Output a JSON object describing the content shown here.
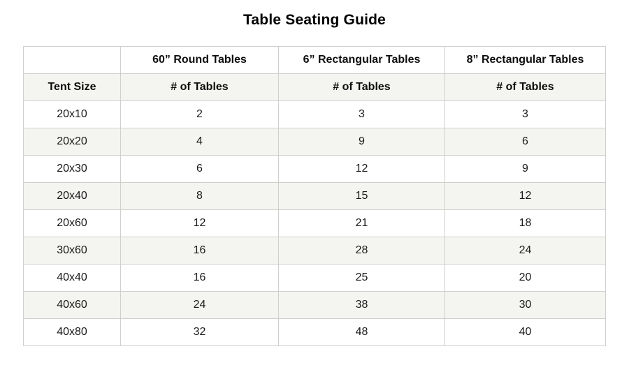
{
  "title": "Table Seating Guide",
  "table": {
    "header_row": [
      "",
      "60” Round Tables",
      "6” Rectangular Tables",
      "8” Rectangular Tables"
    ],
    "subheader_row": [
      "Tent Size",
      "# of Tables",
      "# of Tables",
      "# of Tables"
    ],
    "rows": [
      [
        "20x10",
        "2",
        "3",
        "3"
      ],
      [
        "20x20",
        "4",
        "9",
        "6"
      ],
      [
        "20x30",
        "6",
        "12",
        "9"
      ],
      [
        "20x40",
        "8",
        "15",
        "12"
      ],
      [
        "20x60",
        "12",
        "21",
        "18"
      ],
      [
        "30x60",
        "16",
        "28",
        "24"
      ],
      [
        "40x40",
        "16",
        "25",
        "20"
      ],
      [
        "40x60",
        "24",
        "38",
        "30"
      ],
      [
        "40x80",
        "32",
        "48",
        "40"
      ]
    ],
    "colors": {
      "stripe_background": "#f4f4f1",
      "border": "#cfcfcd",
      "text": "#1a1a1a",
      "title_text": "#000000"
    }
  },
  "chart_data": {
    "type": "table",
    "title": "Table Seating Guide",
    "categories": [
      "20x10",
      "20x20",
      "20x30",
      "20x40",
      "20x60",
      "30x60",
      "40x40",
      "40x60",
      "40x80"
    ],
    "category_label": "Tent Size",
    "series": [
      {
        "name": "60” Round Tables — # of Tables",
        "values": [
          2,
          4,
          6,
          8,
          12,
          16,
          16,
          24,
          32
        ]
      },
      {
        "name": "6” Rectangular Tables — # of Tables",
        "values": [
          3,
          9,
          12,
          15,
          21,
          28,
          25,
          38,
          48
        ]
      },
      {
        "name": "8” Rectangular Tables — # of Tables",
        "values": [
          3,
          6,
          9,
          12,
          18,
          24,
          20,
          30,
          40
        ]
      }
    ]
  }
}
